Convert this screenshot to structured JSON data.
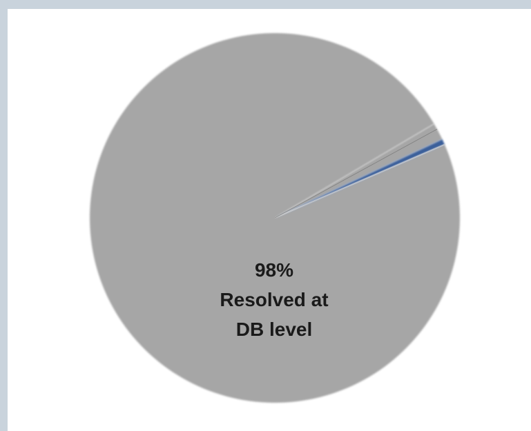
{
  "chart_data": {
    "type": "pie",
    "title": "",
    "slices": [
      {
        "label": "Resolved at DB level",
        "value": 98,
        "display": "98%",
        "color": "#a6a6a6"
      },
      {
        "label": "",
        "value": 1.5,
        "display": "",
        "color": "#a6a6a6"
      },
      {
        "label": "",
        "value": 0.5,
        "display": "",
        "color": "#3a5f9a"
      }
    ],
    "label_lines": [
      "98%",
      "Resolved at",
      "DB level"
    ]
  },
  "colors": {
    "background": "#c9d3dc",
    "panel": "#ffffff",
    "primary_slice": "#a6a6a6",
    "separator_light": "#d2d2d2",
    "separator_dark": "#6f6f6f",
    "accent_slice": "#3a5f9a"
  }
}
